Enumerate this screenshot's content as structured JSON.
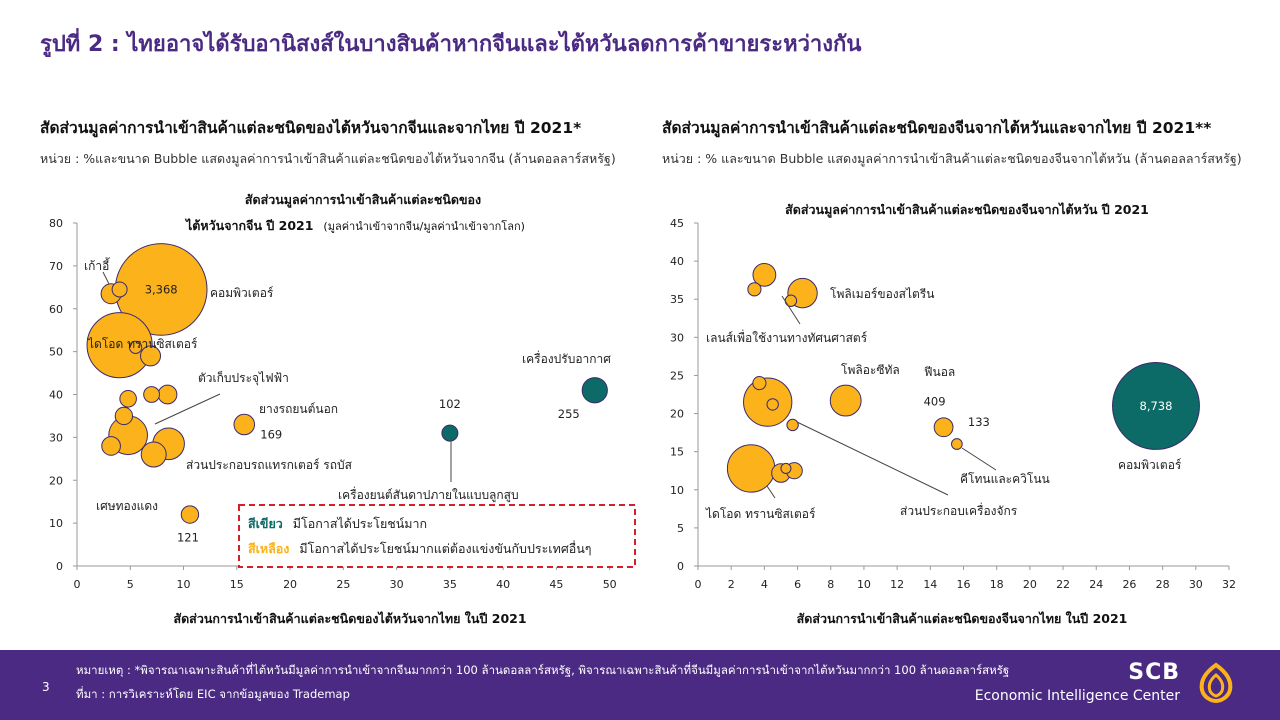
{
  "page": {
    "title": "รูปที่ 2 : ไทยอาจได้รับอานิสงส์ในบางสินค้าหากจีนและไต้หวันลดการค้าขายระหว่างกัน",
    "page_number": "3"
  },
  "left_panel": {
    "title": "สัดส่วนมูลค่าการนำเข้าสินค้าแต่ละชนิดของไต้หวันจากจีนและจากไทย ปี 2021*",
    "unit": "หน่วย : %และขนาด Bubble แสดงมูลค่าการนำเข้าสินค้าแต่ละชนิดของไต้หวันจากจีน (ล้านดอลลาร์สหรัฐ)",
    "legend": {
      "green_label": "สีเขียว",
      "green_text": "มีโอกาสได้ประโยชน์มาก",
      "yellow_label": "สีเหลือง",
      "yellow_text": "มีโอกาสได้ประโยชน์มากแต่ต้องแข่งขันกับประเทศอื่นๆ"
    }
  },
  "right_panel": {
    "title": "สัดส่วนมูลค่าการนำเข้าสินค้าแต่ละชนิดของจีนจากไต้หวันและจากไทย ปี 2021**",
    "unit": "หน่วย : % และขนาด Bubble แสดงมูลค่าการนำเข้าสินค้าแต่ละชนิดของจีนจากไต้หวัน (ล้านดอลลาร์สหรัฐ)"
  },
  "colors": {
    "title": "#4b2a83",
    "yellow": "#fbb21b",
    "green": "#0c6b66",
    "bubble_stroke": "#3b2a6b",
    "legend_border": "#d4202a",
    "footer": "#4b2a83"
  },
  "chart_data": [
    {
      "type": "scatter",
      "title": "สัดส่วนมูลค่าการนำเข้าสินค้าแต่ละชนิดของ",
      "subtitle_main": "ไต้หวันจากจีน ปี 2021",
      "subtitle_note": "(มูลค่านำเข้าจากจีน/มูลค่านำเข้าจากโลก)",
      "xlabel": "สัดส่วนการนำเข้าสินค้าแต่ละชนิดของไต้หวันจากไทย ในปี 2021",
      "ylabel": "",
      "xlim": [
        0,
        52
      ],
      "ylim": [
        0,
        80
      ],
      "xticks": [
        0,
        5,
        10,
        15,
        20,
        25,
        30,
        35,
        40,
        45,
        50
      ],
      "yticks": [
        0,
        10,
        20,
        30,
        40,
        50,
        60,
        70,
        80
      ],
      "grid": false,
      "points": [
        {
          "x": 7.9,
          "y": 64.5,
          "size": 3368,
          "color": "yellow",
          "label": "3,368"
        },
        {
          "x": 4.0,
          "y": 51.5,
          "size": 1700,
          "color": "yellow"
        },
        {
          "x": 4.8,
          "y": 30.5,
          "size": 600,
          "color": "yellow"
        },
        {
          "x": 8.6,
          "y": 28.5,
          "size": 400,
          "color": "yellow"
        },
        {
          "x": 7.2,
          "y": 26.0,
          "size": 250,
          "color": "yellow"
        },
        {
          "x": 3.2,
          "y": 63.5,
          "size": 160,
          "color": "yellow"
        },
        {
          "x": 6.9,
          "y": 49.0,
          "size": 160,
          "color": "yellow"
        },
        {
          "x": 8.5,
          "y": 40.0,
          "size": 140,
          "color": "yellow"
        },
        {
          "x": 3.2,
          "y": 28.0,
          "size": 140,
          "color": "yellow"
        },
        {
          "x": 4.8,
          "y": 39.0,
          "size": 110,
          "color": "yellow"
        },
        {
          "x": 7.0,
          "y": 40.0,
          "size": 100,
          "color": "yellow"
        },
        {
          "x": 4.4,
          "y": 35.0,
          "size": 120,
          "color": "yellow"
        },
        {
          "x": 15.7,
          "y": 33.0,
          "size": 169,
          "color": "yellow",
          "label": "169"
        },
        {
          "x": 10.6,
          "y": 12.0,
          "size": 121,
          "color": "yellow",
          "label": "121"
        },
        {
          "x": 4.0,
          "y": 64.5,
          "size": 90,
          "color": "yellow"
        },
        {
          "x": 5.5,
          "y": 51.0,
          "size": 60,
          "color": "yellow"
        },
        {
          "x": 35.0,
          "y": 31.0,
          "size": 102,
          "color": "green",
          "label": "102"
        },
        {
          "x": 48.6,
          "y": 41.0,
          "size": 255,
          "color": "green",
          "label": "255"
        }
      ],
      "annotations": [
        "เก้าอี้",
        "คอมพิวเตอร์",
        "ไดโอด ทรานซิสเตอร์",
        "ตัวเก็บประจุไฟฟ้า",
        "ยางรถยนต์นอก",
        "ส่วนประกอบรถแทรกเตอร์ รถบัส",
        "เศษทองแดง",
        "เครื่องยนต์สันดาปภายในแบบลูกสูบ",
        "เครื่องปรับอากาศ"
      ]
    },
    {
      "type": "scatter",
      "title": "สัดส่วนมูลค่าการนำเข้าสินค้าแต่ละชนิดของจีนจากไต้หวัน ปี 2021",
      "xlabel": "สัดส่วนการนำเข้าสินค้าแต่ละชนิดของจีนจากไทย ในปี 2021",
      "ylabel": "",
      "xlim": [
        0,
        32
      ],
      "ylim": [
        0,
        45
      ],
      "xticks": [
        0,
        2,
        4,
        6,
        8,
        10,
        12,
        14,
        16,
        18,
        20,
        22,
        24,
        26,
        28,
        30,
        32
      ],
      "yticks": [
        0,
        5,
        10,
        15,
        20,
        25,
        30,
        35,
        40,
        45
      ],
      "grid": false,
      "points": [
        {
          "x": 27.6,
          "y": 21.0,
          "size": 8738,
          "color": "green",
          "label": "8,738"
        },
        {
          "x": 3.2,
          "y": 12.8,
          "size": 2600,
          "color": "yellow"
        },
        {
          "x": 4.2,
          "y": 21.5,
          "size": 2700,
          "color": "yellow"
        },
        {
          "x": 8.9,
          "y": 21.7,
          "size": 1100,
          "color": "yellow"
        },
        {
          "x": 6.3,
          "y": 35.8,
          "size": 1000,
          "color": "yellow"
        },
        {
          "x": 4.0,
          "y": 38.2,
          "size": 600,
          "color": "yellow"
        },
        {
          "x": 5.0,
          "y": 12.2,
          "size": 400,
          "color": "yellow"
        },
        {
          "x": 5.8,
          "y": 12.5,
          "size": 300,
          "color": "yellow"
        },
        {
          "x": 3.7,
          "y": 24.0,
          "size": 200,
          "color": "yellow"
        },
        {
          "x": 3.4,
          "y": 36.3,
          "size": 200,
          "color": "yellow"
        },
        {
          "x": 14.8,
          "y": 18.2,
          "size": 409,
          "color": "yellow",
          "label": "409"
        },
        {
          "x": 15.6,
          "y": 16.0,
          "size": 133,
          "color": "yellow",
          "label": "133"
        },
        {
          "x": 5.6,
          "y": 34.8,
          "size": 150,
          "color": "yellow"
        },
        {
          "x": 4.5,
          "y": 21.2,
          "size": 150,
          "color": "yellow"
        },
        {
          "x": 5.7,
          "y": 18.5,
          "size": 150,
          "color": "yellow"
        },
        {
          "x": 5.3,
          "y": 12.8,
          "size": 80,
          "color": "yellow"
        }
      ],
      "annotations": [
        "โพลิเมอร์ของสไตรีน",
        "เลนส์เพื่อใช้งานทางทัศนศาสตร์",
        "โพลิอะซีทัล",
        "ฟีนอล",
        "คีโทนและควิโนน",
        "ไดโอด ทรานซิสเตอร์",
        "ส่วนประกอบเครื่องจักร",
        "คอมพิวเตอร์"
      ]
    }
  ],
  "footer": {
    "note": "หมายเหตุ : *พิจารณาเฉพาะสินค้าที่ไต้หวันมีมูลค่าการนำเข้าจากจีนมากกว่า 100 ล้านดอลลาร์สหรัฐ, พิจารณาเฉพาะสินค้าที่จีนมีมูลค่าการนำเข้าจากไต้หวันมากกว่า 100 ล้านดอลลาร์สหรัฐ",
    "source": "ที่มา : การวิเคราะห์โดย EIC จากข้อมูลของ Trademap",
    "brand": "SCB",
    "brand_sub": "Economic Intelligence Center"
  }
}
